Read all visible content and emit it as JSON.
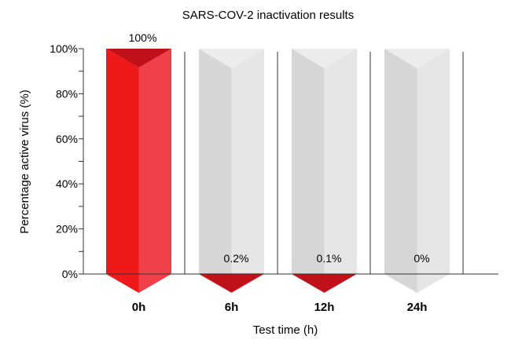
{
  "chart_data": {
    "type": "bar",
    "title": "SARS-COV-2 inactivation results",
    "xlabel": "Test time (h)",
    "ylabel": "Percentage active virus (%)",
    "categories": [
      "0h",
      "6h",
      "12h",
      "24h"
    ],
    "values": [
      100,
      0.2,
      0.1,
      0
    ],
    "data_labels": [
      "100%",
      "0.2%",
      "0.1%",
      "0%"
    ],
    "ylim": [
      0,
      100
    ],
    "yticks": [
      0,
      20,
      40,
      60,
      80,
      100
    ],
    "ytick_labels": [
      "0%",
      "20%",
      "40%",
      "60%",
      "80%",
      "100%"
    ],
    "grid": false,
    "colors": {
      "fill": "#f01919",
      "fill_light": "#f0404a",
      "fill_dark": "#c0101a",
      "ghost": "#d6d6d6",
      "ghost_light": "#e6e6e6",
      "ghost_top": "#ececec",
      "axis": "#333333"
    }
  }
}
